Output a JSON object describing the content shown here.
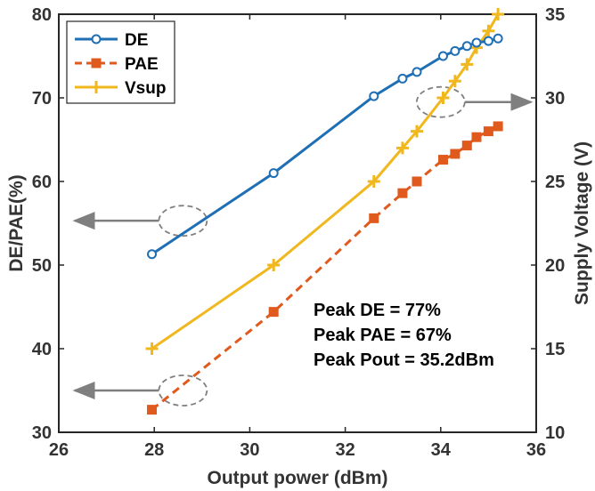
{
  "chart_data": {
    "type": "line",
    "xlabel": "Output power (dBm)",
    "ylabel": "DE/PAE(%)",
    "y2label": "Supply Voltage (V)",
    "xlim": [
      26,
      36
    ],
    "ylim": [
      30,
      80
    ],
    "y2lim": [
      10,
      35
    ],
    "xticks": [
      26,
      28,
      30,
      32,
      34,
      36
    ],
    "yticks": [
      30,
      40,
      50,
      60,
      70,
      80
    ],
    "y2ticks": [
      10,
      15,
      20,
      25,
      30,
      35
    ],
    "grid": false,
    "legend_position": "top-left",
    "series": [
      {
        "name": "DE",
        "axis": "left",
        "color": "#1F6FB5",
        "line_style": "solid",
        "marker": "circle",
        "x": [
          27.95,
          30.5,
          32.6,
          33.2,
          33.5,
          34.05,
          34.3,
          34.55,
          34.75,
          35.0,
          35.2
        ],
        "y": [
          51.3,
          61.0,
          70.2,
          72.3,
          73.1,
          75.0,
          75.6,
          76.2,
          76.6,
          76.8,
          77.1
        ]
      },
      {
        "name": "PAE",
        "axis": "left",
        "color": "#E05A1E",
        "line_style": "dashed",
        "marker": "square",
        "x": [
          27.95,
          30.5,
          32.6,
          33.2,
          33.5,
          34.05,
          34.3,
          34.55,
          34.75,
          35.0,
          35.2
        ],
        "y": [
          32.7,
          44.4,
          55.6,
          58.6,
          60.0,
          62.6,
          63.3,
          64.3,
          65.3,
          66.0,
          66.6
        ]
      },
      {
        "name": "Vsup",
        "axis": "right",
        "color": "#F0B81E",
        "line_style": "solid",
        "marker": "plus",
        "x": [
          27.95,
          30.5,
          32.6,
          33.2,
          33.5,
          34.05,
          34.3,
          34.55,
          34.75,
          35.0,
          35.2
        ],
        "y": [
          15.0,
          20.0,
          25.0,
          27.0,
          28.0,
          30.0,
          31.0,
          32.0,
          33.0,
          34.0,
          35.0
        ]
      }
    ],
    "annotations": [
      "Peak DE = 77%",
      "Peak PAE = 67%",
      "Peak Pout = 35.2dBm"
    ],
    "callout_color": "#7F7F7F",
    "callouts": [
      {
        "ellipse_center": [
          28.6,
          55.3
        ],
        "points_to_axis": "left"
      },
      {
        "ellipse_center": [
          28.6,
          35.0
        ],
        "points_to_axis": "left"
      },
      {
        "ellipse_center": [
          34.0,
          69.5
        ],
        "points_to_axis": "right"
      }
    ]
  }
}
